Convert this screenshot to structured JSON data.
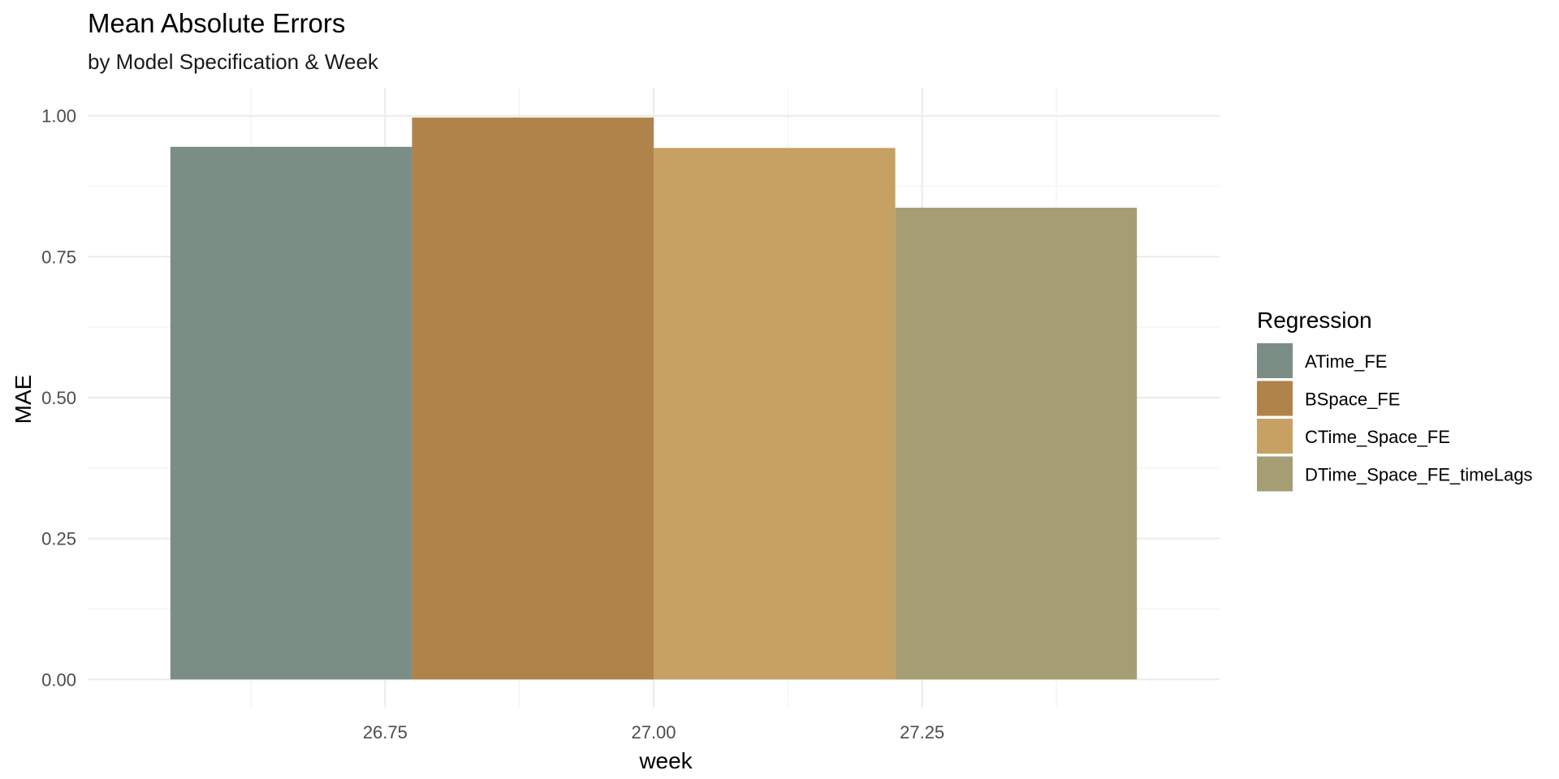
{
  "chart_data": {
    "type": "bar",
    "title": "Mean Absolute Errors",
    "subtitle": "by Model Specification & Week",
    "xlabel": "week",
    "ylabel": "MAE",
    "x_center": 27,
    "xlim": [
      26.5,
      27.5
    ],
    "x_ticks": [
      26.75,
      27.0,
      27.25
    ],
    "x_tick_labels": [
      "26.75",
      "27.00",
      "27.25"
    ],
    "ylim": [
      0,
      1.0
    ],
    "y_ticks": [
      0,
      0.25,
      0.5,
      0.75,
      1.0
    ],
    "y_tick_labels": [
      "0.00",
      "0.25",
      "0.50",
      "0.75",
      "1.00"
    ],
    "grid": true,
    "legend": {
      "title": "Regression",
      "placement": "right"
    },
    "series": [
      {
        "name": "ATime_FE",
        "value": 0.945,
        "color": "#7a8e86"
      },
      {
        "name": "BSpace_FE",
        "value": 0.997,
        "color": "#b0834b"
      },
      {
        "name": "CTime_Space_FE",
        "value": 0.943,
        "color": "#c7a063"
      },
      {
        "name": "DTime_Space_FE_timeLags",
        "value": 0.837,
        "color": "#a59e74"
      }
    ]
  }
}
